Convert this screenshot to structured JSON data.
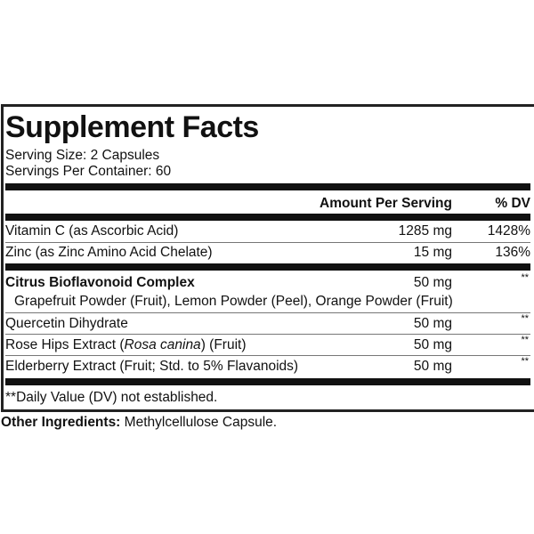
{
  "title": "Supplement Facts",
  "serving_size": "Serving Size: 2 Capsules",
  "servings_per_container": "Servings Per Container: 60",
  "header": {
    "amount": "Amount Per Serving",
    "dv": "% DV"
  },
  "vitamins": [
    {
      "name": "Vitamin C (as Ascorbic Acid)",
      "amount": "1285 mg",
      "dv": "1428%"
    },
    {
      "name": "Zinc (as Zinc Amino Acid Chelate)",
      "amount": "15 mg",
      "dv": "136%"
    }
  ],
  "blend": {
    "name": "Citrus Bioflavonoid Complex",
    "amount": "50 mg",
    "dv": "**",
    "sub": "Grapefruit Powder (Fruit), Lemon Powder (Peel), Orange Powder (Fruit)"
  },
  "others": [
    {
      "name": "Quercetin Dihydrate",
      "amount": "50 mg",
      "dv": "**"
    },
    {
      "name_pre": "Rose Hips Extract (",
      "name_italic": "Rosa canina",
      "name_post": ") (Fruit)",
      "amount": "50 mg",
      "dv": "**"
    },
    {
      "name": "Elderberry Extract (Fruit; Std. to 5% Flavanoids)",
      "amount": "50 mg",
      "dv": "**"
    }
  ],
  "footnote": "**Daily Value (DV) not established.",
  "other_ingredients": {
    "label": "Other Ingredients:",
    "value": " Methylcellulose Capsule."
  }
}
